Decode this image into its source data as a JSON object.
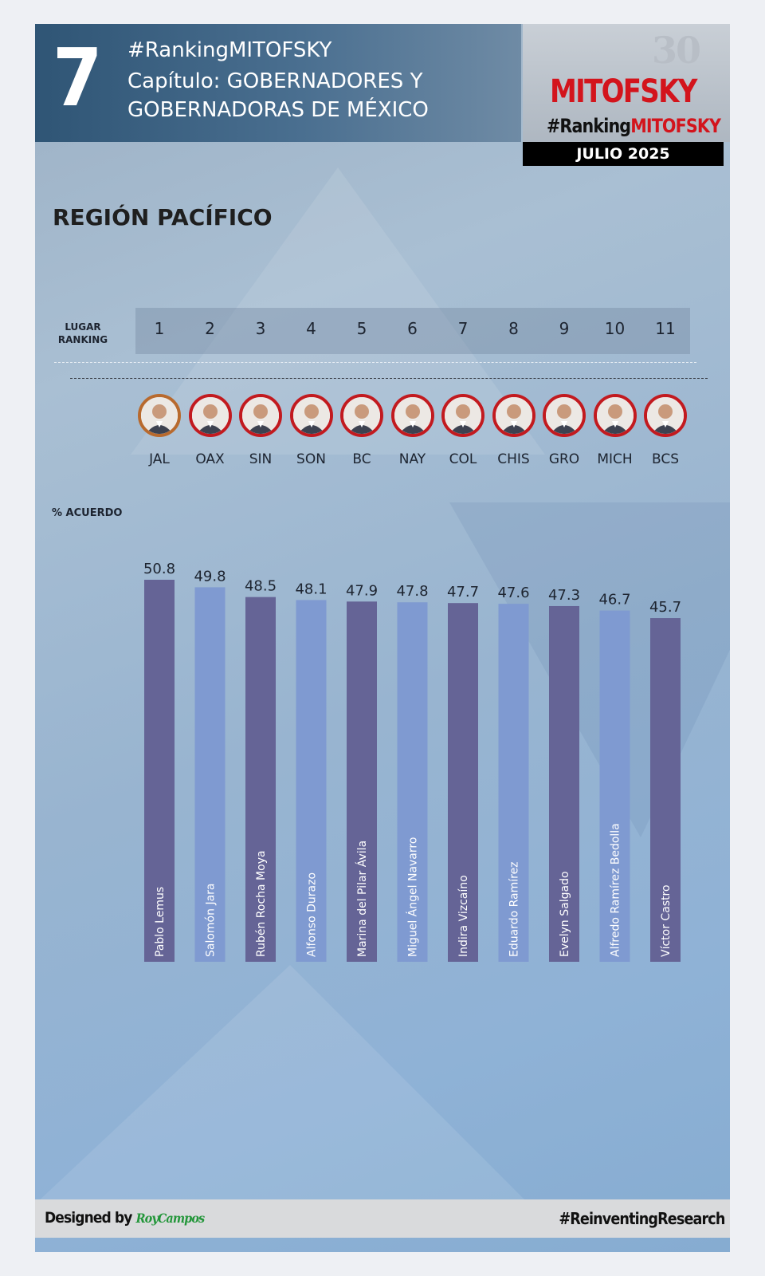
{
  "header": {
    "chapter_number": "7",
    "hashtag": "#RankingMITOFSKY",
    "chapter_title": "Capítulo: GOBERNADORES Y GOBERNADORAS DE MÉXICO"
  },
  "logo": {
    "anniversary": "30",
    "brand": "MITOFSKY",
    "hashtag_prefix": "#Ranking",
    "hashtag_brand": "MITOFSKY",
    "date": "JULIO 2025"
  },
  "region_title": "REGIÓN PACÍFICO",
  "rank_label": "LUGAR RANKING",
  "y_label": "% ACUERDO",
  "colors": {
    "bar_dark": "#656496",
    "bar_light": "#7f9ad1",
    "avatar_border": "#c21a1f",
    "brand_red": "#d3141c"
  },
  "chart_data": {
    "type": "bar",
    "ylabel": "% ACUERDO",
    "categories": [
      "JAL",
      "OAX",
      "SIN",
      "SON",
      "BC",
      "NAY",
      "COL",
      "CHIS",
      "GRO",
      "MICH",
      "BCS"
    ],
    "ranks": [
      "1",
      "2",
      "3",
      "4",
      "5",
      "6",
      "7",
      "8",
      "9",
      "10",
      "11"
    ],
    "governors": [
      "Pablo Lemus",
      "Salomón Jara",
      "Rubén Rocha Moya",
      "Alfonso Durazo",
      "Marina del Pilar Ávila",
      "Miguel Ángel Navarro",
      "Indira Vizcaíno",
      "Eduardo Ramírez",
      "Evelyn Salgado",
      "Alfredo Ramírez Bedolla",
      "Víctor Castro"
    ],
    "values": [
      50.8,
      49.8,
      48.5,
      48.1,
      47.9,
      47.8,
      47.7,
      47.6,
      47.3,
      46.7,
      45.7
    ]
  },
  "footer": {
    "designed_by": "Designed by",
    "designer": "RoyCampos",
    "hashtag": "#ReinventingResearch"
  }
}
